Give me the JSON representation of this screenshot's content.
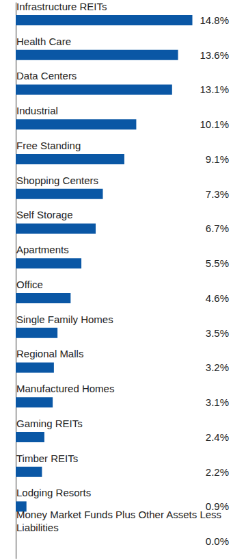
{
  "chart_data": {
    "type": "bar",
    "orientation": "horizontal",
    "categories": [
      "Infrastructure REITs",
      "Health Care",
      "Data Centers",
      "Industrial",
      "Free Standing",
      "Shopping Centers",
      "Self Storage",
      "Apartments",
      "Office",
      "Single Family Homes",
      "Regional Malls",
      "Manufactured Homes",
      "Gaming REITs",
      "Timber REITs",
      "Lodging Resorts",
      "Money Market Funds Plus Other Assets Less Liabilities"
    ],
    "values": [
      14.8,
      13.6,
      13.1,
      10.1,
      9.1,
      7.3,
      6.7,
      5.5,
      4.6,
      3.5,
      3.2,
      3.1,
      2.4,
      2.2,
      0.9,
      0.0
    ],
    "value_labels": [
      "14.8%",
      "13.6%",
      "13.1%",
      "10.1%",
      "9.1%",
      "7.3%",
      "6.7%",
      "5.5%",
      "4.6%",
      "3.5%",
      "3.2%",
      "3.1%",
      "2.4%",
      "2.2%",
      "0.9%",
      "0.0%"
    ],
    "color": "#0a57a5",
    "xlim": [
      0,
      15
    ],
    "data_labels": true,
    "tick_labels": false,
    "grid": false
  }
}
